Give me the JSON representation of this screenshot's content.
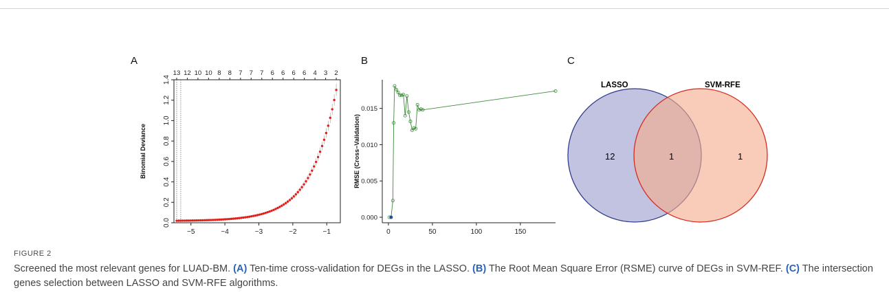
{
  "panels": {
    "a": {
      "letter": "A"
    },
    "b": {
      "letter": "B"
    },
    "c": {
      "letter": "C"
    }
  },
  "chart_data": [
    {
      "type": "line",
      "panel": "A",
      "ylabel": "Binomial Deviance",
      "xlabel": "",
      "xlim": [
        -5.5,
        -0.6
      ],
      "ylim": [
        0,
        1.4
      ],
      "x_ticks": [
        -5,
        -4,
        -3,
        -2,
        -1
      ],
      "y_ticks": [
        0.0,
        0.2,
        0.4,
        0.6,
        0.8,
        1.0,
        1.2,
        1.4
      ],
      "top_axis_labels": [
        "13",
        "12",
        "10",
        "10",
        "8",
        "8",
        "7",
        "7",
        "7",
        "6",
        "6",
        "6",
        "6",
        "4",
        "3",
        "2"
      ],
      "vlines": [
        -5.42,
        -5.3
      ],
      "curve": {
        "x_start": -5.42,
        "x_end": -0.72,
        "y_start": 0.02,
        "y_end": 1.3,
        "growth": 1.34,
        "points": 80
      },
      "color": "#e0201b",
      "errorbar_color": "#9a9a9a",
      "grid": false
    },
    {
      "type": "line",
      "panel": "B",
      "ylabel": "RMSE (Cross−Validation)",
      "xlabel": "",
      "xlim": [
        -7,
        190
      ],
      "ylim": [
        0,
        0.018
      ],
      "x_ticks": [
        0,
        50,
        100,
        150
      ],
      "y_ticks": [
        0.0,
        0.005,
        0.01,
        0.015
      ],
      "y_tick_labels": [
        "0.000",
        "0.005",
        "0.010",
        "0.015"
      ],
      "x": [
        1,
        3,
        5,
        6,
        7,
        9,
        11,
        13,
        15,
        17,
        19,
        21,
        23,
        25,
        27,
        29,
        31,
        33,
        35,
        37,
        39,
        190
      ],
      "y": [
        0.0,
        0.0,
        0.0023,
        0.013,
        0.0181,
        0.0176,
        0.0172,
        0.0168,
        0.0168,
        0.0169,
        0.014,
        0.0167,
        0.0145,
        0.0132,
        0.012,
        0.0123,
        0.0122,
        0.0155,
        0.0148,
        0.0149,
        0.0148,
        0.0174
      ],
      "best_point": {
        "x": 3,
        "y": 0.0
      },
      "color": "#3e8a3a",
      "best_color": "#2b4aa5",
      "grid": false
    }
  ],
  "venn": {
    "sets": [
      {
        "name": "LASSO",
        "fill": "#9c9ecd",
        "stroke": "#2e3b8a"
      },
      {
        "name": "SVM-RFE",
        "fill": "#f3ad8c",
        "stroke": "#d52b22"
      }
    ],
    "counts": {
      "lasso_only": "12",
      "both": "1",
      "svm_only": "1"
    }
  },
  "figure": {
    "label": "FIGURE 2",
    "caption": {
      "intro": "Screened the most relevant genes for LUAD-BM. ",
      "a_tag": "(A)",
      "a_text": " Ten-time cross-validation for DEGs in the LASSO. ",
      "b_tag": "(B)",
      "b_text": " The Root Mean Square Error (RSME) curve of DEGs in SVM-REF. ",
      "c_tag": "(C)",
      "c_text": " The intersection genes selection between LASSO and SVM-RFE algorithms."
    }
  }
}
